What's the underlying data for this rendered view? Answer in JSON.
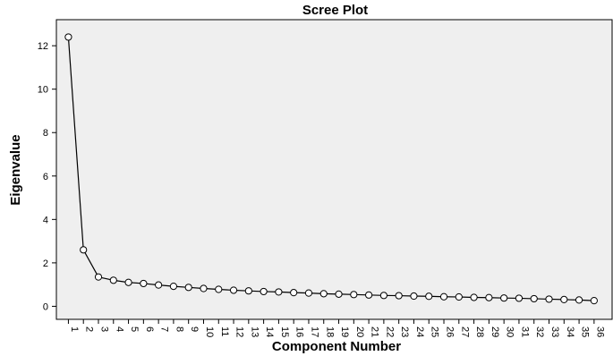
{
  "chart_data": {
    "type": "line",
    "title": "Scree Plot",
    "xlabel": "Component Number",
    "ylabel": "Eigenvalue",
    "x": [
      1,
      2,
      3,
      4,
      5,
      6,
      7,
      8,
      9,
      10,
      11,
      12,
      13,
      14,
      15,
      16,
      17,
      18,
      19,
      20,
      21,
      22,
      23,
      24,
      25,
      26,
      27,
      28,
      29,
      30,
      31,
      32,
      33,
      34,
      35,
      36
    ],
    "series": [
      {
        "values": [
          12.4,
          2.6,
          1.35,
          1.2,
          1.1,
          1.05,
          0.98,
          0.92,
          0.87,
          0.82,
          0.78,
          0.74,
          0.71,
          0.68,
          0.66,
          0.63,
          0.61,
          0.58,
          0.56,
          0.54,
          0.52,
          0.5,
          0.49,
          0.47,
          0.46,
          0.44,
          0.43,
          0.41,
          0.4,
          0.38,
          0.37,
          0.35,
          0.33,
          0.31,
          0.29,
          0.26
        ]
      }
    ],
    "ylim": [
      -0.6,
      13.2
    ],
    "yticks": [
      0,
      2,
      4,
      6,
      8,
      10,
      12
    ],
    "xlim": [
      0.2,
      37.2
    ],
    "grid": false,
    "legend": "none",
    "colors": {
      "plot_background": "#efefef",
      "line": "#000000",
      "marker_fill": "#ffffff",
      "axis": "#000000"
    }
  }
}
